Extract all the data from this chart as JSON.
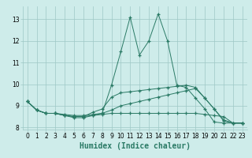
{
  "xlabel": "Humidex (Indice chaleur)",
  "x": [
    0,
    1,
    2,
    3,
    4,
    5,
    6,
    7,
    8,
    9,
    10,
    11,
    12,
    13,
    14,
    15,
    16,
    17,
    18,
    19,
    20,
    21,
    22,
    23
  ],
  "lines": [
    [
      9.2,
      8.8,
      8.65,
      8.65,
      8.55,
      8.5,
      8.5,
      8.55,
      8.65,
      9.95,
      11.5,
      13.1,
      11.35,
      12.0,
      13.25,
      12.0,
      9.95,
      9.85,
      9.35,
      8.85,
      8.25,
      8.2,
      8.2,
      8.2
    ],
    [
      9.2,
      8.8,
      8.65,
      8.65,
      8.55,
      8.5,
      8.5,
      8.7,
      8.85,
      9.4,
      9.6,
      9.65,
      9.7,
      9.75,
      9.8,
      9.85,
      9.9,
      9.95,
      9.85,
      9.35,
      8.85,
      8.35,
      8.2,
      8.2
    ],
    [
      9.2,
      8.8,
      8.65,
      8.65,
      8.55,
      8.45,
      8.45,
      8.55,
      8.6,
      8.65,
      8.65,
      8.65,
      8.65,
      8.65,
      8.65,
      8.65,
      8.65,
      8.65,
      8.65,
      8.6,
      8.55,
      8.5,
      8.2,
      8.2
    ],
    [
      9.2,
      8.8,
      8.65,
      8.65,
      8.6,
      8.55,
      8.55,
      8.6,
      8.65,
      8.8,
      9.0,
      9.1,
      9.2,
      9.3,
      9.4,
      9.5,
      9.6,
      9.7,
      9.8,
      9.35,
      8.85,
      8.3,
      8.2,
      8.2
    ]
  ],
  "line_color": "#2a7a65",
  "marker": "+",
  "marker_size": 3.5,
  "marker_lw": 0.9,
  "bg_color": "#ceecea",
  "grid_color": "#9ec8c5",
  "ylim": [
    7.9,
    13.6
  ],
  "xlim": [
    -0.5,
    23.5
  ],
  "yticks": [
    8,
    9,
    10,
    11,
    12,
    13
  ],
  "xticks": [
    0,
    1,
    2,
    3,
    4,
    5,
    6,
    7,
    8,
    9,
    10,
    11,
    12,
    13,
    14,
    15,
    16,
    17,
    18,
    19,
    20,
    21,
    22,
    23
  ],
  "tick_fontsize": 5.5,
  "label_fontsize": 7.0,
  "linewidth": 0.7
}
